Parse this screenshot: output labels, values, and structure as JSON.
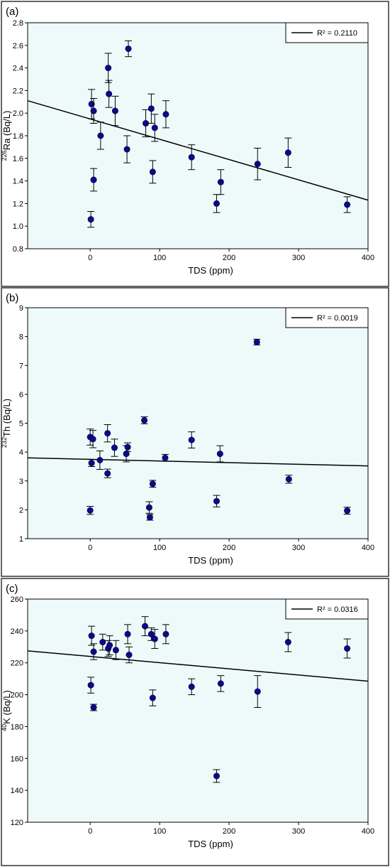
{
  "colors": {
    "plot_background": "#eefafa",
    "marker": "#0a0a8c",
    "line": "#000000",
    "border": "#333333"
  },
  "chart_data": [
    {
      "type": "scatter",
      "panel_label": "(a)",
      "xlabel": "TDS (ppm)",
      "ylabel_sup": "226",
      "ylabel_main": "Ra (Bq/L)",
      "xlim": [
        -90,
        400
      ],
      "ylim": [
        0.8,
        2.8
      ],
      "xticks": [
        0,
        100,
        200,
        300,
        400
      ],
      "yticks": [
        0.8,
        1.0,
        1.2,
        1.4,
        1.6,
        1.8,
        2.0,
        2.2,
        2.4,
        2.6,
        2.8
      ],
      "ytick_decimals": 1,
      "legend": "R² = 0.2110",
      "legend_position": "top-right",
      "trendline": {
        "x": [
          -90,
          400
        ],
        "y": [
          2.11,
          1.23
        ]
      },
      "points": [
        {
          "x": 1,
          "y": 1.06,
          "err": 0.07
        },
        {
          "x": 2,
          "y": 2.08,
          "err": 0.13
        },
        {
          "x": 5,
          "y": 2.02,
          "err": 0.11
        },
        {
          "x": 5,
          "y": 1.41,
          "err": 0.1
        },
        {
          "x": 15,
          "y": 1.8,
          "err": 0.12
        },
        {
          "x": 26,
          "y": 2.4,
          "err": 0.13
        },
        {
          "x": 27,
          "y": 2.17,
          "err": 0.12
        },
        {
          "x": 36,
          "y": 2.02,
          "err": 0.13
        },
        {
          "x": 53,
          "y": 1.68,
          "err": 0.12
        },
        {
          "x": 55,
          "y": 2.57,
          "err": 0.07
        },
        {
          "x": 80,
          "y": 1.91,
          "err": 0.12
        },
        {
          "x": 88,
          "y": 2.04,
          "err": 0.13
        },
        {
          "x": 90,
          "y": 1.48,
          "err": 0.1
        },
        {
          "x": 93,
          "y": 1.87,
          "err": 0.12
        },
        {
          "x": 109,
          "y": 1.99,
          "err": 0.12
        },
        {
          "x": 146,
          "y": 1.61,
          "err": 0.11
        },
        {
          "x": 182,
          "y": 1.2,
          "err": 0.08
        },
        {
          "x": 188,
          "y": 1.39,
          "err": 0.11
        },
        {
          "x": 241,
          "y": 1.55,
          "err": 0.14
        },
        {
          "x": 285,
          "y": 1.65,
          "err": 0.13
        },
        {
          "x": 370,
          "y": 1.19,
          "err": 0.07
        }
      ]
    },
    {
      "type": "scatter",
      "panel_label": "(b)",
      "xlabel": "TDS (ppm)",
      "ylabel_sup": "232",
      "ylabel_main": "Th (Bq/L)",
      "xlim": [
        -90,
        400
      ],
      "ylim": [
        1,
        9
      ],
      "xticks": [
        0,
        100,
        200,
        300,
        400
      ],
      "yticks": [
        1,
        2,
        3,
        4,
        5,
        6,
        7,
        8,
        9
      ],
      "ytick_decimals": 0,
      "legend": "R² = 0.0019",
      "legend_position": "top-right",
      "trendline": {
        "x": [
          -90,
          400
        ],
        "y": [
          3.8,
          3.52
        ]
      },
      "points": [
        {
          "x": 0,
          "y": 1.98,
          "err": 0.14
        },
        {
          "x": 0,
          "y": 4.52,
          "err": 0.28
        },
        {
          "x": 2,
          "y": 3.62,
          "err": 0.12
        },
        {
          "x": 4,
          "y": 4.45,
          "err": 0.3
        },
        {
          "x": 14,
          "y": 3.72,
          "err": 0.32
        },
        {
          "x": 25,
          "y": 4.65,
          "err": 0.3
        },
        {
          "x": 25,
          "y": 3.26,
          "err": 0.15
        },
        {
          "x": 35,
          "y": 4.15,
          "err": 0.3
        },
        {
          "x": 52,
          "y": 3.94,
          "err": 0.28
        },
        {
          "x": 54,
          "y": 4.17,
          "err": 0.15
        },
        {
          "x": 78,
          "y": 5.1,
          "err": 0.12
        },
        {
          "x": 85,
          "y": 2.08,
          "err": 0.2
        },
        {
          "x": 86,
          "y": 1.74,
          "err": 0.1
        },
        {
          "x": 90,
          "y": 2.9,
          "err": 0.12
        },
        {
          "x": 108,
          "y": 3.8,
          "err": 0.12
        },
        {
          "x": 146,
          "y": 4.42,
          "err": 0.28
        },
        {
          "x": 182,
          "y": 2.3,
          "err": 0.2
        },
        {
          "x": 187,
          "y": 3.94,
          "err": 0.28
        },
        {
          "x": 240,
          "y": 7.81,
          "err": 0.1
        },
        {
          "x": 286,
          "y": 3.06,
          "err": 0.14
        },
        {
          "x": 370,
          "y": 1.97,
          "err": 0.12
        }
      ]
    },
    {
      "type": "scatter",
      "panel_label": "(c)",
      "xlabel": "TDS (ppm)",
      "ylabel_sup": "40",
      "ylabel_main": "K (Bq/L)",
      "xlim": [
        -90,
        400
      ],
      "ylim": [
        120,
        260
      ],
      "xticks": [
        0,
        100,
        200,
        300,
        400
      ],
      "yticks": [
        120,
        140,
        160,
        180,
        200,
        220,
        240,
        260
      ],
      "ytick_decimals": 0,
      "legend": "R² = 0.0316",
      "legend_position": "top-right",
      "trendline": {
        "x": [
          -90,
          400
        ],
        "y": [
          227.5,
          208.5
        ]
      },
      "points": [
        {
          "x": 1,
          "y": 206,
          "err": 5
        },
        {
          "x": 2,
          "y": 237,
          "err": 6
        },
        {
          "x": 5,
          "y": 227,
          "err": 5
        },
        {
          "x": 5,
          "y": 192,
          "err": 2
        },
        {
          "x": 18,
          "y": 233,
          "err": 5
        },
        {
          "x": 26,
          "y": 229,
          "err": 5
        },
        {
          "x": 28,
          "y": 231,
          "err": 6
        },
        {
          "x": 37,
          "y": 228,
          "err": 6
        },
        {
          "x": 54,
          "y": 238,
          "err": 6
        },
        {
          "x": 56,
          "y": 225,
          "err": 5
        },
        {
          "x": 79,
          "y": 243,
          "err": 6
        },
        {
          "x": 88,
          "y": 238,
          "err": 4
        },
        {
          "x": 90,
          "y": 198,
          "err": 5
        },
        {
          "x": 93,
          "y": 235,
          "err": 6
        },
        {
          "x": 109,
          "y": 238,
          "err": 6
        },
        {
          "x": 146,
          "y": 205,
          "err": 5
        },
        {
          "x": 182,
          "y": 149,
          "err": 4
        },
        {
          "x": 188,
          "y": 207,
          "err": 5
        },
        {
          "x": 241,
          "y": 202,
          "err": 10
        },
        {
          "x": 285,
          "y": 233,
          "err": 6
        },
        {
          "x": 370,
          "y": 229,
          "err": 6
        }
      ]
    }
  ]
}
